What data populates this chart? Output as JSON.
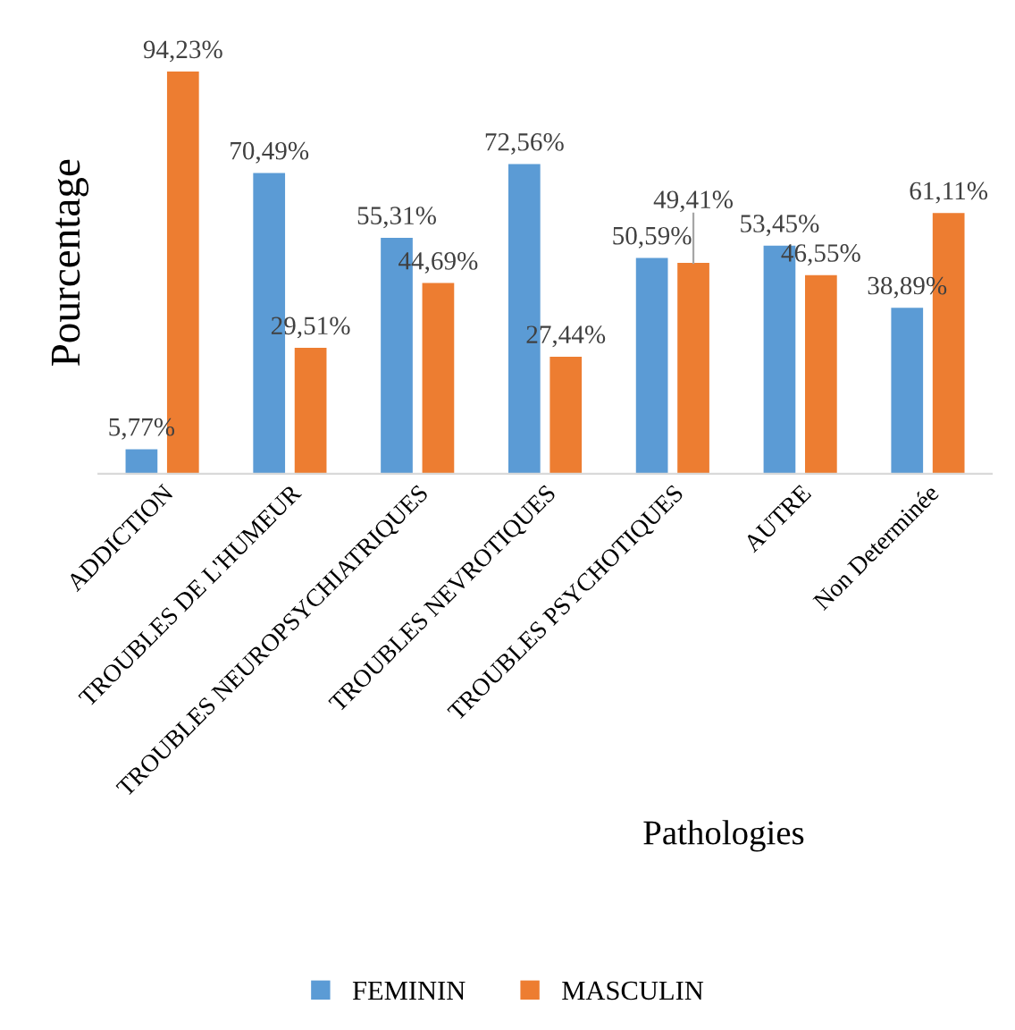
{
  "chart_data": {
    "type": "bar",
    "ylabel": "Pourcentage",
    "xlabel": "Pathologies",
    "categories": [
      "ADDICTION",
      "TROUBLES DE L'HUMEUR",
      "TROUBLES NEUROPSYCHIATRIQUES",
      "TROUBLES NEVROTIQUES",
      "TROUBLES PSYCHOTIQUES",
      "AUTRE",
      "Non Determinée"
    ],
    "series": [
      {
        "name": "FEMININ",
        "color": "#5b9bd5",
        "values": [
          5.77,
          70.49,
          55.31,
          72.56,
          50.59,
          53.45,
          38.89
        ],
        "value_labels": [
          "5,77%",
          "70,49%",
          "55,31%",
          "72,56%",
          "50,59%",
          "53,45%",
          "38,89%"
        ]
      },
      {
        "name": "MASCULIN",
        "color": "#ed7d31",
        "values": [
          94.23,
          29.51,
          44.69,
          27.44,
          49.41,
          46.55,
          61.11
        ],
        "value_labels": [
          "94,23%",
          "29,51%",
          "44,69%",
          "27,44%",
          "49,41%",
          "46,55%",
          "61,11%"
        ]
      }
    ],
    "legend": "bottom",
    "grid": false
  }
}
